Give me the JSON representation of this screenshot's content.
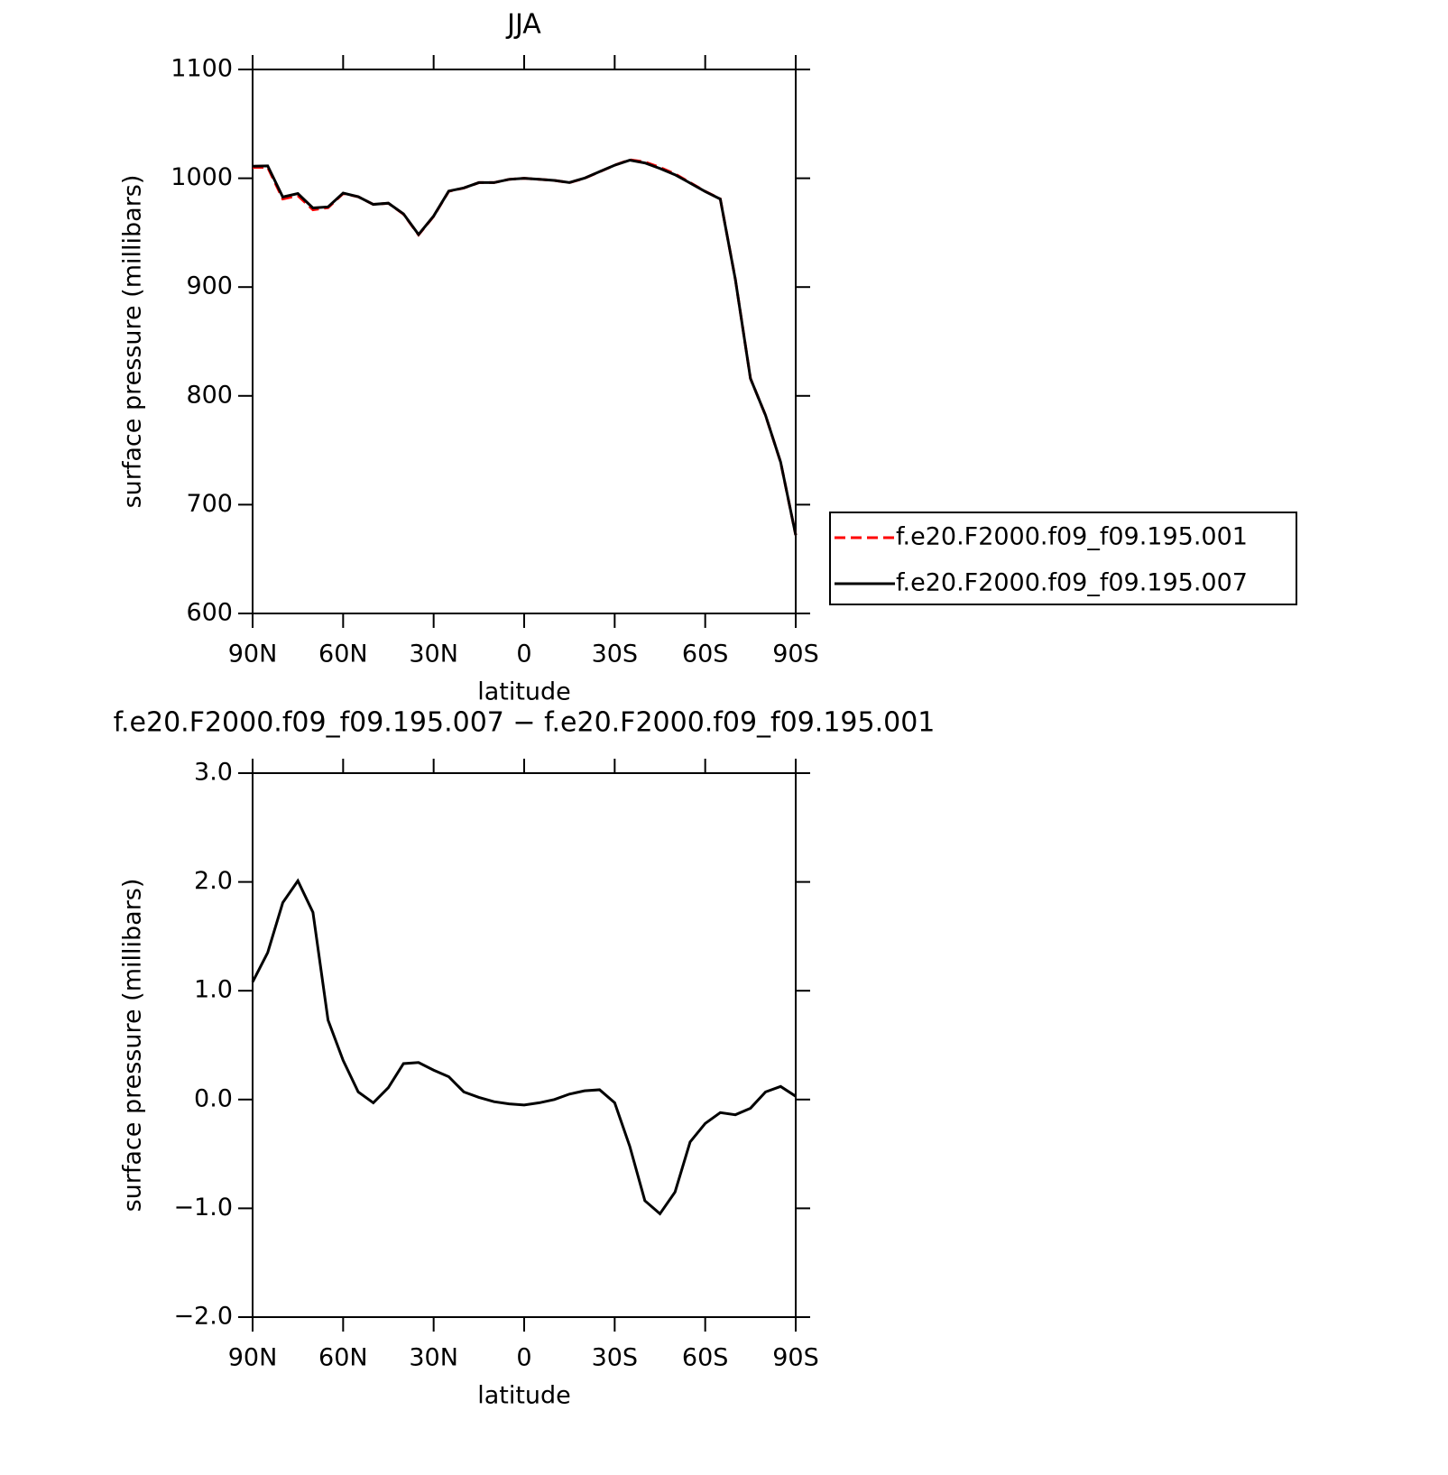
{
  "chart_data": [
    {
      "type": "line",
      "title": "JJA",
      "xlabel": "latitude",
      "ylabel": "surface pressure (millibars)",
      "x": [
        90,
        85,
        80,
        75,
        70,
        65,
        60,
        55,
        50,
        45,
        40,
        35,
        30,
        25,
        20,
        15,
        10,
        5,
        0,
        -5,
        -10,
        -15,
        -20,
        -25,
        -30,
        -35,
        -40,
        -45,
        -50,
        -55,
        -60,
        -65,
        -70,
        -75,
        -80,
        -85,
        -90
      ],
      "series": [
        {
          "name": "f.e20.F2000.f09_f09.195.001",
          "color": "#ff0000",
          "line_style": "dashed",
          "values": [
            1010,
            1010,
            981,
            984,
            971,
            973,
            986,
            983,
            976,
            977,
            967,
            948,
            965,
            988,
            991,
            996,
            996,
            999,
            1000,
            999,
            998,
            996,
            1000,
            1006,
            1012,
            1017,
            1015,
            1010,
            1004,
            996,
            988,
            981,
            907,
            816,
            782,
            739,
            672
          ]
        },
        {
          "name": "f.e20.F2000.f09_f09.195.007",
          "color": "#000000",
          "line_style": "solid",
          "values": [
            1011.1,
            1011.4,
            982.8,
            986.0,
            972.7,
            973.7,
            986.4,
            983.1,
            976.0,
            977.1,
            967.3,
            948.3,
            965.3,
            988.2,
            991.1,
            996.0,
            996.0,
            999.0,
            1000.0,
            999.0,
            998.0,
            996.1,
            1000.1,
            1006.1,
            1012.0,
            1016.6,
            1014.1,
            1009.0,
            1003.2,
            995.6,
            987.8,
            980.9,
            906.9,
            815.9,
            782.1,
            739.1,
            672.0
          ]
        }
      ],
      "xlim": [
        90,
        -90
      ],
      "xticks": [
        {
          "value": 90,
          "label": "90N"
        },
        {
          "value": 60,
          "label": "60N"
        },
        {
          "value": 30,
          "label": "30N"
        },
        0,
        {
          "value": -30,
          "label": "30S"
        },
        {
          "value": -60,
          "label": "60S"
        },
        {
          "value": -90,
          "label": "90S"
        }
      ],
      "ylim": [
        600,
        1100
      ],
      "yticks": [
        600,
        700,
        800,
        900,
        1000,
        1100
      ],
      "legend": "right"
    },
    {
      "type": "line",
      "title": "f.e20.F2000.f09_f09.195.007 − f.e20.F2000.f09_f09.195.001",
      "xlabel": "latitude",
      "ylabel": "surface pressure (millibars)",
      "x": [
        90,
        85,
        80,
        75,
        70,
        65,
        60,
        55,
        50,
        45,
        40,
        35,
        30,
        25,
        20,
        15,
        10,
        5,
        0,
        -5,
        -10,
        -15,
        -20,
        -25,
        -30,
        -35,
        -40,
        -45,
        -50,
        -55,
        -60,
        -65,
        -70,
        -75,
        -80,
        -85,
        -90
      ],
      "color": "#000000",
      "values": [
        1.08,
        1.35,
        1.81,
        2.01,
        1.72,
        0.73,
        0.36,
        0.07,
        -0.03,
        0.11,
        0.33,
        0.34,
        0.27,
        0.21,
        0.07,
        0.02,
        -0.02,
        -0.04,
        -0.05,
        -0.03,
        0.0,
        0.05,
        0.08,
        0.09,
        -0.03,
        -0.43,
        -0.93,
        -1.05,
        -0.85,
        -0.39,
        -0.22,
        -0.12,
        -0.14,
        -0.08,
        0.07,
        0.12,
        0.03
      ],
      "xlim": [
        90,
        -90
      ],
      "xticks": [
        {
          "value": 90,
          "label": "90N"
        },
        {
          "value": 60,
          "label": "60N"
        },
        {
          "value": 30,
          "label": "30N"
        },
        0,
        {
          "value": -30,
          "label": "30S"
        },
        {
          "value": -60,
          "label": "60S"
        },
        {
          "value": -90,
          "label": "90S"
        }
      ],
      "ylim": [
        -2,
        3
      ],
      "yticks": [
        {
          "value": -2,
          "label": "−2.0"
        },
        {
          "value": -1,
          "label": "−1.0"
        },
        {
          "value": 0,
          "label": "0.0"
        },
        {
          "value": 1,
          "label": "1.0"
        },
        {
          "value": 2,
          "label": "2.0"
        },
        {
          "value": 3,
          "label": "3.0"
        }
      ]
    }
  ]
}
